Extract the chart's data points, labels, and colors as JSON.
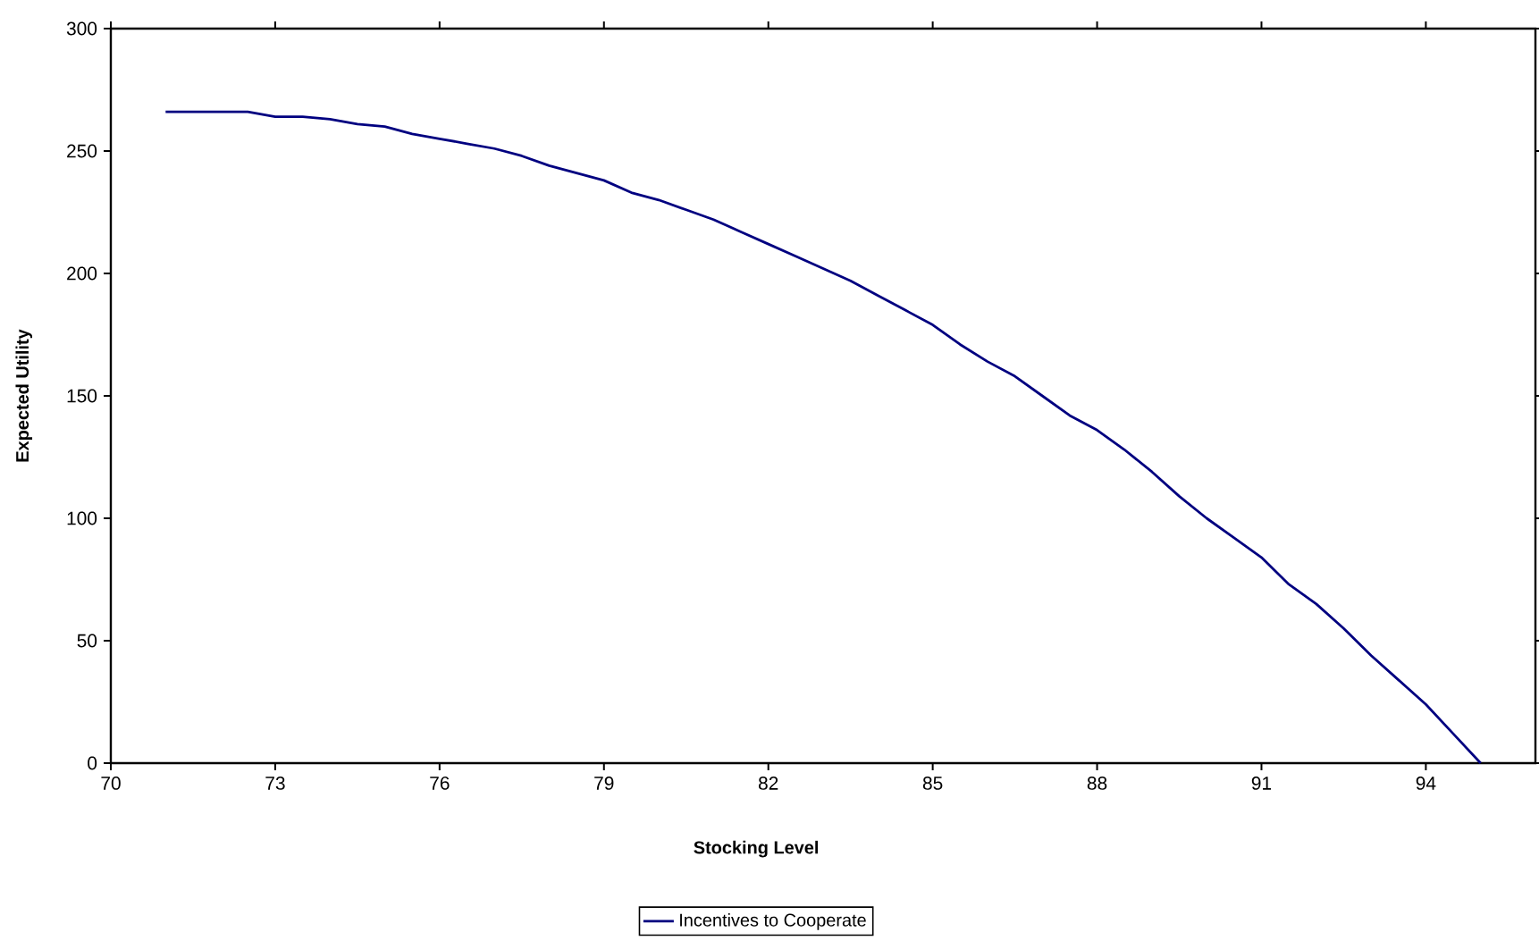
{
  "chart_data": {
    "type": "line",
    "xlabel": "Stocking Level",
    "ylabel": "Expected Utility",
    "x": [
      71,
      71.5,
      72,
      72.5,
      73,
      73.5,
      74,
      74.5,
      75,
      75.5,
      76,
      76.5,
      77,
      77.5,
      78,
      78.5,
      79,
      79.5,
      80,
      80.5,
      81,
      81.5,
      82,
      82.5,
      83,
      83.5,
      84,
      84.5,
      85,
      85.5,
      86,
      86.5,
      87,
      87.5,
      88,
      88.5,
      89,
      89.5,
      90,
      90.5,
      91,
      91.5,
      92,
      92.5,
      93,
      93.5,
      94,
      94.5,
      95
    ],
    "series": [
      {
        "name": "Incentives to Cooperate",
        "color": "#000080",
        "values": [
          266,
          266,
          266,
          266,
          264,
          264,
          263,
          261,
          260,
          257,
          255,
          253,
          251,
          248,
          244,
          241,
          238,
          233,
          230,
          226,
          222,
          217,
          212,
          207,
          202,
          197,
          191,
          185,
          179,
          171,
          164,
          158,
          150,
          142,
          136,
          128,
          119,
          109,
          100,
          92,
          84,
          73,
          65,
          55,
          44,
          34,
          24,
          12,
          0
        ]
      }
    ],
    "xlim": [
      70,
      96
    ],
    "xticks": [
      70,
      73,
      76,
      79,
      82,
      85,
      88,
      91,
      94
    ],
    "ylim": [
      0,
      300
    ],
    "yticks": [
      0,
      50,
      100,
      150,
      200,
      250,
      300
    ],
    "legend": "bottom"
  }
}
